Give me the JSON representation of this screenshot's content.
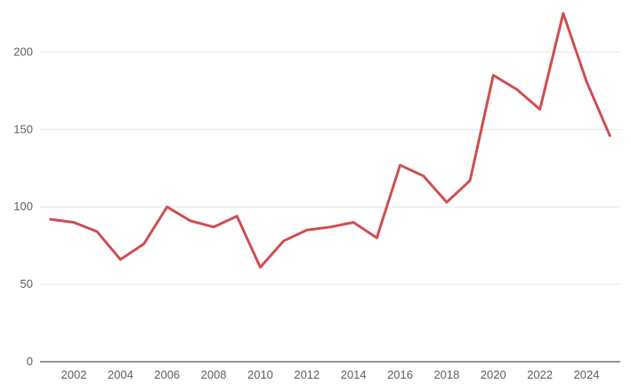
{
  "chart_data": {
    "type": "line",
    "title": "",
    "xlabel": "",
    "ylabel": "",
    "x": [
      2001,
      2002,
      2003,
      2004,
      2005,
      2006,
      2007,
      2008,
      2009,
      2010,
      2011,
      2012,
      2013,
      2014,
      2015,
      2016,
      2017,
      2018,
      2019,
      2020,
      2021,
      2022,
      2023,
      2024,
      2025
    ],
    "series": [
      {
        "values": [
          92,
          90,
          84,
          66,
          76,
          100,
          91,
          87,
          94,
          61,
          78,
          85,
          87,
          90,
          80,
          127,
          120,
          103,
          117,
          185,
          176,
          163,
          225,
          181,
          146
        ],
        "color": "#d14f52"
      }
    ],
    "xlim": [
      2000.55,
      2025.45
    ],
    "ylim": [
      0,
      225
    ],
    "x_ticks": [
      "2002",
      "2004",
      "2006",
      "2008",
      "2010",
      "2012",
      "2014",
      "2016",
      "2018",
      "2020",
      "2022",
      "2024"
    ],
    "y_ticks": [
      "0",
      "50",
      "100",
      "150",
      "200"
    ],
    "grid": true,
    "legend": "none"
  }
}
